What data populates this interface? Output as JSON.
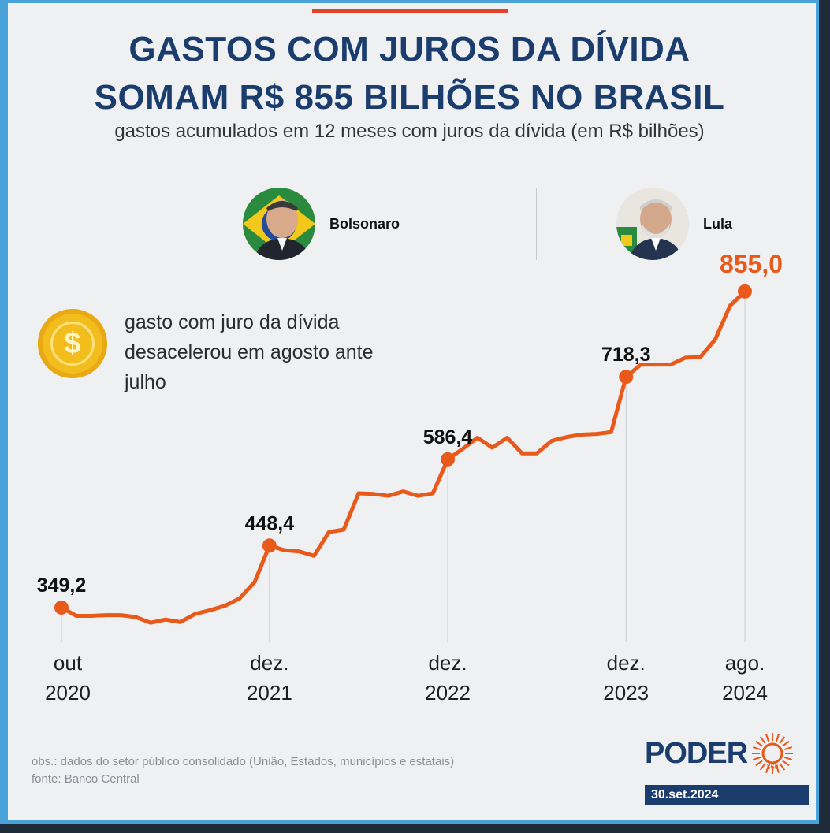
{
  "header": {
    "title_line1": "GASTOS COM JUROS DA DÍVIDA",
    "title_line2": "SOMAM R$ 855 BILHÕES NO BRASIL",
    "subtitle": "gastos acumulados em 12 meses com juros da dívida (em R$ bilhões)"
  },
  "people": [
    {
      "name": "Bolsonaro"
    },
    {
      "name": "Lula"
    }
  ],
  "note": "gasto com juro da dívida desacelerou em agosto ante julho",
  "footer": {
    "obs": "obs.: dados do setor público consolidado (União, Estados, municípios e estatais)",
    "source": "fonte: Banco Central"
  },
  "brand": {
    "logo_text": "PODER",
    "logo_sub": "360",
    "date": "30.set.2024"
  },
  "colors": {
    "line": "#e8591a",
    "title": "#1b3d6e",
    "border": "#4aa3d8"
  },
  "chart_data": {
    "type": "line",
    "title": "",
    "xlabel": "",
    "ylabel": "",
    "grid": false,
    "x_ticks": [
      {
        "index": 0,
        "line1": "out",
        "line2": "2020"
      },
      {
        "index": 14,
        "line1": "dez.",
        "line2": "2021"
      },
      {
        "index": 26,
        "line1": "dez.",
        "line2": "2022"
      },
      {
        "index": 38,
        "line1": "dez.",
        "line2": "2023"
      },
      {
        "index": 46,
        "line1": "ago.",
        "line2": "2024"
      }
    ],
    "highlighted": [
      {
        "index": 0,
        "label": "349,2"
      },
      {
        "index": 14,
        "label": "448,4"
      },
      {
        "index": 26,
        "label": "586,4"
      },
      {
        "index": 38,
        "label": "718,3"
      },
      {
        "index": 46,
        "label": "855,0"
      }
    ],
    "series": [
      {
        "values": [
          349.2,
          336,
          336,
          337,
          337,
          334,
          325,
          330,
          326,
          339,
          345,
          352,
          364,
          390,
          448.4,
          441,
          439,
          432,
          470,
          474,
          532,
          531,
          528,
          535,
          528,
          532,
          586.4,
          603,
          621,
          605,
          621,
          596,
          596,
          616,
          622,
          626,
          627,
          630,
          718.3,
          738,
          738,
          738,
          749,
          750,
          778,
          832,
          855.0
        ]
      }
    ],
    "ylim": [
      300,
      880
    ]
  }
}
